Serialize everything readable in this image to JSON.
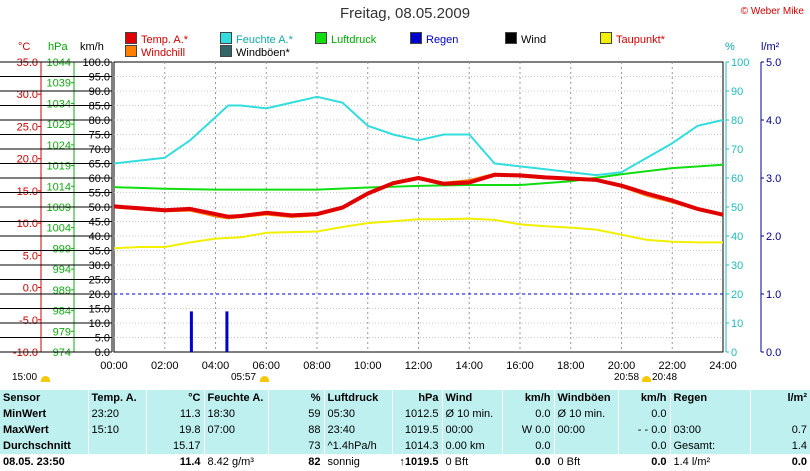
{
  "title": "Freitag, 08.05.2009",
  "copyright": "© Weber Mike",
  "legend": [
    {
      "label": "Temp. A.*",
      "color": "#e00000"
    },
    {
      "label": "Feuchte A.*",
      "color": "#33dddd"
    },
    {
      "label": "Luftdruck",
      "color": "#11dd11"
    },
    {
      "label": "Regen",
      "color": "#0000cc"
    },
    {
      "label": "Wind",
      "color": "#000000"
    },
    {
      "label": "Taupunkt*",
      "color": "#f0f000"
    },
    {
      "label": "Windchill",
      "color": "#ff8000"
    },
    {
      "label": "Windböen*",
      "color": "#336666"
    }
  ],
  "units": {
    "temp": "°C",
    "pressure": "hPa",
    "wind": "km/h",
    "humidity": "%",
    "rain": "l/m²"
  },
  "sun": {
    "rise_left": "15:00",
    "rise": "05:57",
    "set": "20:58",
    "set2": "20:48"
  },
  "chart_data": {
    "type": "line",
    "x_axis": {
      "min": 0,
      "max": 24,
      "ticks": [
        "00:00",
        "02:00",
        "04:00",
        "06:00",
        "08:00",
        "10:00",
        "12:00",
        "14:00",
        "16:00",
        "18:00",
        "20:00",
        "22:00",
        "24:00"
      ]
    },
    "axes": {
      "temp_c": {
        "min": -10,
        "max": 35,
        "ticks": [
          "35.0",
          "30.0",
          "25.0",
          "20.0",
          "15.0",
          "10.0",
          "5.0",
          "0.0",
          "-5.0",
          "-10.0"
        ]
      },
      "pressure_hpa": {
        "min": 974,
        "max": 1044,
        "ticks": [
          "1044",
          "1039",
          "1034",
          "1029",
          "1024",
          "1019",
          "1014",
          "1009",
          "1004",
          "999",
          "994",
          "989",
          "984",
          "979",
          "974"
        ]
      },
      "wind_kmh": {
        "min": 0,
        "max": 100,
        "ticks": [
          "100.0",
          "95.0",
          "90.0",
          "85.0",
          "80.0",
          "75.0",
          "70.0",
          "65.0",
          "60.0",
          "55.0",
          "50.0",
          "45.0",
          "40.0",
          "35.0",
          "30.0",
          "25.0",
          "20.0",
          "15.0",
          "10.0",
          "5.0",
          "0.0"
        ]
      },
      "humidity_pct": {
        "min": 0,
        "max": 100,
        "ticks": [
          "100",
          "90",
          "80",
          "70",
          "60",
          "50",
          "40",
          "30",
          "20",
          "10",
          "0"
        ]
      },
      "rain_lm2": {
        "min": 0,
        "max": 5,
        "ticks": [
          "5.0",
          "4.0",
          "3.0",
          "2.0",
          "1.0",
          "0.0"
        ]
      }
    },
    "series": [
      {
        "name": "Temp. A.*",
        "axis": "temp_c",
        "color": "#e00000",
        "x": [
          0,
          1,
          2,
          3,
          4,
          4.5,
          5,
          6,
          7,
          8,
          9,
          10,
          11,
          12,
          13,
          14,
          15,
          16,
          17,
          18,
          19,
          20,
          21,
          22,
          23,
          24
        ],
        "y": [
          12.6,
          12.3,
          12.0,
          12.2,
          11.4,
          11.0,
          11.1,
          11.6,
          11.2,
          11.4,
          12.4,
          14.6,
          16.2,
          17.0,
          16.1,
          16.3,
          17.5,
          17.4,
          17.1,
          16.9,
          16.7,
          15.8,
          14.6,
          13.5,
          12.2,
          11.3
        ]
      },
      {
        "name": "Windchill",
        "axis": "temp_c",
        "color": "#ff8000",
        "x": [
          0,
          1,
          2,
          3,
          4,
          4.5,
          5,
          6,
          7,
          8,
          9,
          10,
          11,
          12,
          13,
          14,
          15,
          16,
          17,
          18,
          19,
          20,
          21,
          22,
          23,
          24
        ],
        "y": [
          12.4,
          12.1,
          11.8,
          11.9,
          11.0,
          10.7,
          10.9,
          11.3,
          10.9,
          11.2,
          12.2,
          14.4,
          16.0,
          16.9,
          16.3,
          16.7,
          17.7,
          17.2,
          16.9,
          16.8,
          16.6,
          15.6,
          14.2,
          13.2,
          12.0,
          11.2
        ]
      },
      {
        "name": "Feuchte A.*",
        "axis": "humidity_pct",
        "color": "#33dddd",
        "x": [
          0,
          1,
          2,
          3,
          4,
          4.5,
          5,
          6,
          7,
          8,
          9,
          10,
          11,
          12,
          13,
          14,
          15,
          16,
          17,
          18,
          19,
          20,
          21,
          22,
          23,
          24
        ],
        "y": [
          65,
          66,
          67,
          73,
          81,
          85,
          85,
          84,
          86,
          88,
          86,
          78,
          75,
          73,
          75,
          75,
          65,
          64,
          63,
          62,
          61,
          62,
          67,
          72,
          78,
          80
        ]
      },
      {
        "name": "Luftdruck",
        "axis": "pressure_hpa",
        "color": "#11dd11",
        "x": [
          0,
          2,
          4,
          6,
          8,
          10,
          12,
          14,
          16,
          18,
          20,
          22,
          24
        ],
        "y": [
          1013.8,
          1013.4,
          1013.2,
          1013.2,
          1013.2,
          1013.7,
          1014.1,
          1014.3,
          1014.3,
          1015.2,
          1016.9,
          1018.4,
          1019.2
        ]
      },
      {
        "name": "Taupunkt*",
        "axis": "temp_c",
        "color": "#f0f000",
        "x": [
          0,
          1,
          2,
          3,
          4,
          5,
          6,
          7,
          8,
          9,
          10,
          11,
          12,
          13,
          14,
          15,
          16,
          17,
          18,
          19,
          20,
          21,
          22,
          23,
          24
        ],
        "y": [
          6.1,
          6.3,
          6.3,
          7.0,
          7.6,
          7.8,
          8.5,
          8.6,
          8.7,
          9.4,
          10.0,
          10.3,
          10.6,
          10.6,
          10.7,
          10.5,
          9.8,
          9.5,
          9.3,
          9.0,
          8.2,
          7.4,
          7.1,
          7.0,
          7.0
        ]
      },
      {
        "name": "Regen",
        "axis": "rain_lm2",
        "color": "#0000cc",
        "type": "bar",
        "x": [
          3.05,
          4.45
        ],
        "y": [
          0.7,
          0.7
        ]
      }
    ],
    "rain_reference_line": 1.0
  },
  "table": {
    "headers": [
      "Sensor",
      "Temp. A.",
      "°C",
      "Feuchte A.",
      "%",
      "Luftdruck",
      "hPa",
      "Wind",
      "km/h",
      "Windböen",
      "km/h",
      "Regen",
      "l/m²"
    ],
    "rows": [
      [
        "MinWert",
        "23:20",
        "11.3",
        "18:30",
        "59",
        "05:30",
        "1012.5",
        "Ø 10 min.",
        "0.0",
        "Ø 10 min.",
        "0.0",
        "",
        ""
      ],
      [
        "MaxWert",
        "15:10",
        "19.8",
        "07:00",
        "88",
        "23:40",
        "1019.5",
        "00:00",
        "W 0.0",
        "00:00",
        "- - 0.0",
        "03:00",
        "0.7"
      ],
      [
        "Durchschnitt",
        "",
        "15.17",
        "",
        "73",
        "^1.4hPa/h",
        "1014.3",
        "0.00 km",
        "0.0",
        "",
        "0.0",
        "Gesamt:",
        "1.4"
      ],
      [
        "08.05. 23:50",
        "",
        "11.4",
        "8.42 g/m³",
        "82",
        "sonnig",
        "↑1019.5",
        "0 Bft",
        "0.0",
        "0 Bft",
        "0.0",
        "1.4 l/m²",
        "0.0"
      ]
    ]
  }
}
